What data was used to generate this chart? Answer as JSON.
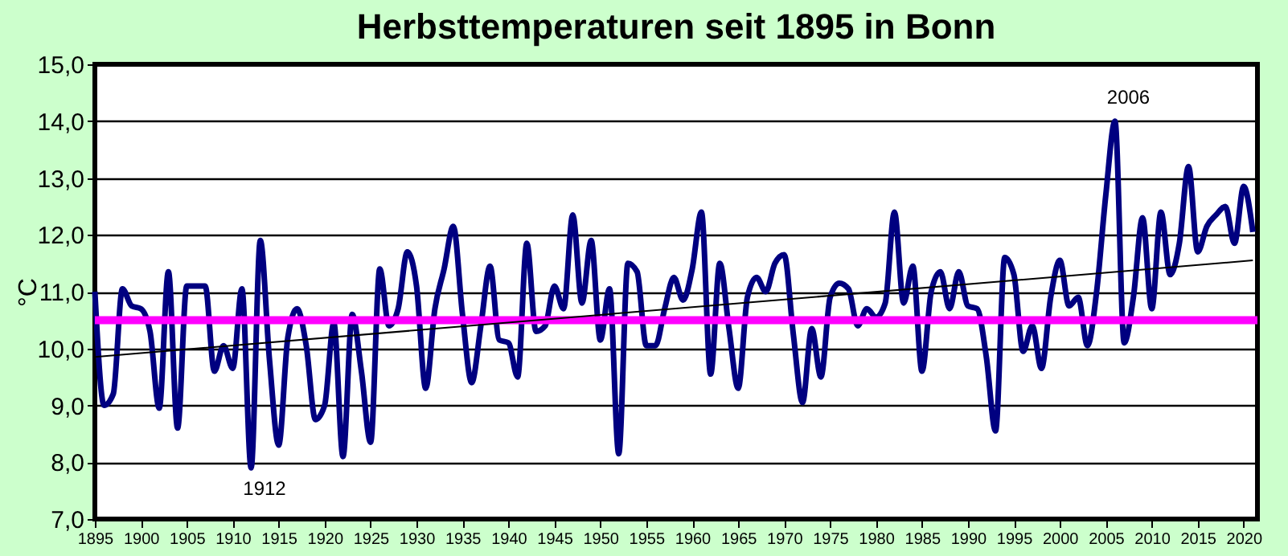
{
  "chart_data": {
    "type": "line",
    "title": "Herbsttemperaturen seit 1895 in Bonn",
    "ylabel": "°C",
    "xlim": [
      1895,
      2021.5
    ],
    "xticks": [
      1895,
      1900,
      1905,
      1910,
      1915,
      1920,
      1925,
      1930,
      1935,
      1940,
      1945,
      1950,
      1955,
      1960,
      1965,
      1970,
      1975,
      1980,
      1985,
      1990,
      1995,
      2000,
      2005,
      2010,
      2015,
      2020
    ],
    "ylim": [
      7,
      15
    ],
    "yticks": [
      {
        "value": 7,
        "label": "7,0"
      },
      {
        "value": 8,
        "label": "8,0"
      },
      {
        "value": 9,
        "label": "9,0"
      },
      {
        "value": 10,
        "label": "10,0"
      },
      {
        "value": 11,
        "label": "11,0"
      },
      {
        "value": 12,
        "label": "12,0"
      },
      {
        "value": 13,
        "label": "13,0"
      },
      {
        "value": 14,
        "label": "14,0"
      },
      {
        "value": 15,
        "label": "15,0"
      }
    ],
    "grid": "y",
    "line_style": "solid",
    "marker": "none",
    "series": [
      {
        "color": "#000080",
        "x": [
          1895,
          1896,
          1897,
          1898,
          1899,
          1900,
          1901,
          1902,
          1903,
          1904,
          1905,
          1906,
          1907,
          1908,
          1909,
          1910,
          1911,
          1912,
          1913,
          1914,
          1915,
          1916,
          1917,
          1918,
          1919,
          1920,
          1921,
          1922,
          1923,
          1924,
          1925,
          1926,
          1927,
          1928,
          1929,
          1930,
          1931,
          1932,
          1933,
          1934,
          1935,
          1936,
          1937,
          1938,
          1939,
          1940,
          1941,
          1942,
          1943,
          1944,
          1945,
          1946,
          1947,
          1948,
          1949,
          1950,
          1951,
          1952,
          1953,
          1954,
          1955,
          1956,
          1957,
          1958,
          1959,
          1960,
          1961,
          1962,
          1963,
          1964,
          1965,
          1966,
          1967,
          1968,
          1969,
          1970,
          1971,
          1972,
          1973,
          1974,
          1975,
          1976,
          1977,
          1978,
          1979,
          1980,
          1981,
          1982,
          1983,
          1984,
          1985,
          1986,
          1987,
          1988,
          1989,
          1990,
          1991,
          1992,
          1993,
          1994,
          1995,
          1996,
          1997,
          1998,
          1999,
          2000,
          2001,
          2002,
          2003,
          2004,
          2005,
          2006,
          2007,
          2008,
          2009,
          2010,
          2011,
          2012,
          2013,
          2014,
          2015,
          2016,
          2017,
          2018,
          2019,
          2020,
          2021
        ],
        "values": [
          11.0,
          9.0,
          9.2,
          11.05,
          10.75,
          10.7,
          10.3,
          8.95,
          11.35,
          8.6,
          11.1,
          11.1,
          11.1,
          9.6,
          10.05,
          9.65,
          11.05,
          7.9,
          11.9,
          9.8,
          8.3,
          10.2,
          10.7,
          10.05,
          8.75,
          9.0,
          10.45,
          8.1,
          10.6,
          9.6,
          8.35,
          11.4,
          10.4,
          10.7,
          11.7,
          11.1,
          9.3,
          10.7,
          11.4,
          12.15,
          10.6,
          9.4,
          10.4,
          11.45,
          10.15,
          10.1,
          9.5,
          11.85,
          10.3,
          10.4,
          11.1,
          10.7,
          12.35,
          10.8,
          11.9,
          10.15,
          11.05,
          8.15,
          11.5,
          11.35,
          10.05,
          10.05,
          10.7,
          11.25,
          10.85,
          11.4,
          12.4,
          9.55,
          11.5,
          10.35,
          9.3,
          10.9,
          11.25,
          11.0,
          11.5,
          11.65,
          10.25,
          9.05,
          10.35,
          9.5,
          10.9,
          11.15,
          11.05,
          10.4,
          10.7,
          10.55,
          10.8,
          12.4,
          10.8,
          11.45,
          9.6,
          11.0,
          11.35,
          10.7,
          11.35,
          10.75,
          10.7,
          9.85,
          8.55,
          11.6,
          11.3,
          9.95,
          10.4,
          9.65,
          10.9,
          11.55,
          10.75,
          10.9,
          10.05,
          11.0,
          12.7,
          14.0,
          10.1,
          10.9,
          12.3,
          10.7,
          12.4,
          11.3,
          11.85,
          13.2,
          11.7,
          12.15,
          12.35,
          12.5,
          11.85,
          12.85,
          12.05
        ]
      },
      {
        "color": "#000000",
        "x": [
          1895,
          2021
        ],
        "values": [
          9.85,
          11.55
        ]
      }
    ],
    "ref_lines": [
      {
        "axis": "y",
        "value": 10.5,
        "color": "#ff00ff"
      }
    ],
    "annotations": [
      {
        "text": "1912",
        "x": 1912,
        "y": 7.9
      },
      {
        "text": "2006",
        "x": 2006,
        "y": 14.0
      }
    ]
  }
}
